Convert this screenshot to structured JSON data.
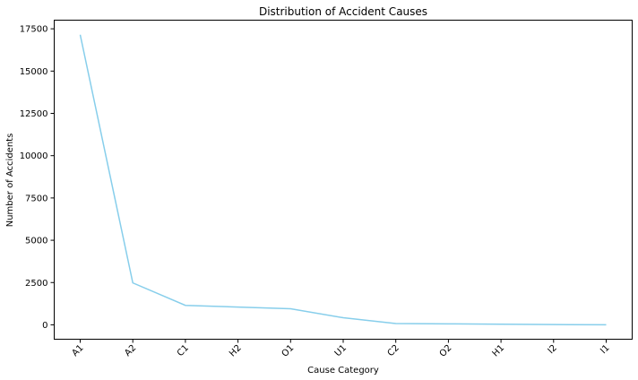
{
  "chart_data": {
    "type": "line",
    "title": "Distribution of Accident Causes",
    "xlabel": "Cause Category",
    "ylabel": "Number of Accidents",
    "categories": [
      "A1",
      "A2",
      "C1",
      "H2",
      "O1",
      "U1",
      "C2",
      "O2",
      "H1",
      "I2",
      "I1"
    ],
    "series": [
      {
        "values": [
          17150,
          2480,
          1150,
          1050,
          950,
          420,
          80,
          60,
          40,
          15,
          5
        ],
        "color": "#87ceeb"
      }
    ],
    "yticks": [
      0,
      2500,
      5000,
      7500,
      10000,
      12500,
      15000,
      17500
    ],
    "ytick_labels": [
      "0",
      "2500",
      "5000",
      "7500",
      "10000",
      "12500",
      "15000",
      "17500"
    ],
    "ylim": [
      -850,
      18010
    ],
    "grid": false,
    "legend": false
  }
}
